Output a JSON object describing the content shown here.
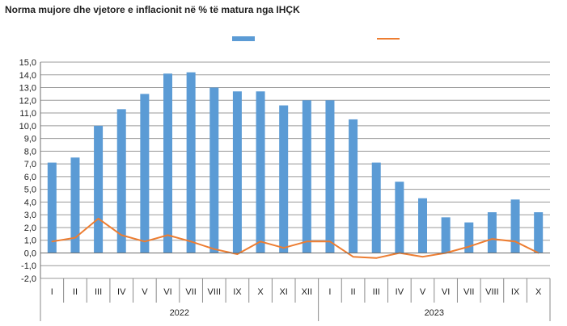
{
  "chart_data": {
    "type": "bar",
    "title": "Norma mujore dhe vjetore e inflacionit në % të matura nga IHÇK",
    "colors": {
      "bars": "#5B9BD5",
      "line": "#ED7D31"
    },
    "legend": {
      "placement": "top-center",
      "entries": [
        "",
        ""
      ]
    },
    "grid": true,
    "ylim": [
      -2.0,
      15.0
    ],
    "y_ticks": [
      "15,0",
      "14,0",
      "13,0",
      "12,0",
      "11,0",
      "10,0",
      "9,0",
      "8,0",
      "7,0",
      "6,0",
      "5,0",
      "4,0",
      "3,0",
      "2,0",
      "1,0",
      "0,0",
      "-1,0",
      "-2,0"
    ],
    "categories": [
      "I",
      "II",
      "III",
      "IV",
      "V",
      "VI",
      "VII",
      "VIII",
      "IX",
      "X",
      "XI",
      "XII",
      "I",
      "II",
      "III",
      "IV",
      "V",
      "VI",
      "VII",
      "VIII",
      "IX",
      "X"
    ],
    "groups": [
      {
        "label": "2022",
        "count": 12
      },
      {
        "label": "2023",
        "count": 10
      }
    ],
    "series": [
      {
        "type": "bar",
        "values": [
          7.1,
          7.5,
          10.0,
          11.3,
          12.5,
          14.1,
          14.2,
          13.0,
          12.7,
          12.7,
          11.6,
          12.0,
          12.0,
          10.5,
          7.1,
          5.6,
          4.3,
          2.8,
          2.4,
          3.2,
          4.2,
          3.2
        ]
      },
      {
        "type": "line",
        "values": [
          0.9,
          1.2,
          2.7,
          1.4,
          0.9,
          1.4,
          0.9,
          0.3,
          -0.1,
          0.9,
          0.4,
          0.9,
          0.9,
          -0.3,
          -0.4,
          0.0,
          -0.3,
          0.0,
          0.5,
          1.1,
          0.9,
          0.0
        ]
      }
    ]
  }
}
